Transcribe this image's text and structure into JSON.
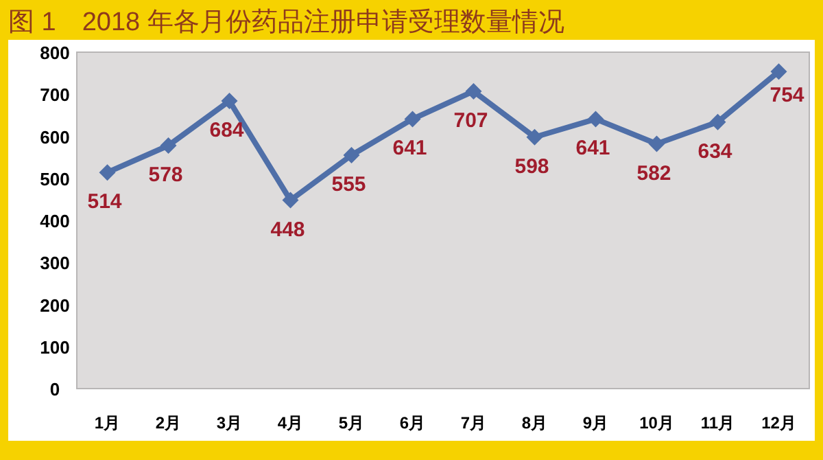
{
  "chart_data": {
    "type": "line",
    "title": "图 1　2018 年各月份药品注册申请受理数量情况",
    "categories": [
      "1月",
      "2月",
      "3月",
      "4月",
      "5月",
      "6月",
      "7月",
      "8月",
      "9月",
      "10月",
      "11月",
      "12月"
    ],
    "series": [
      {
        "color": "#4f6fa8",
        "values": [
          514,
          578,
          684,
          448,
          555,
          641,
          707,
          598,
          641,
          582,
          634,
          754
        ]
      }
    ],
    "ylim": [
      0,
      800
    ],
    "yticks": [
      0,
      100,
      200,
      300,
      400,
      500,
      600,
      700,
      800
    ],
    "grid": false,
    "marker": "diamond",
    "line_style": "solid",
    "data_labels": true
  }
}
